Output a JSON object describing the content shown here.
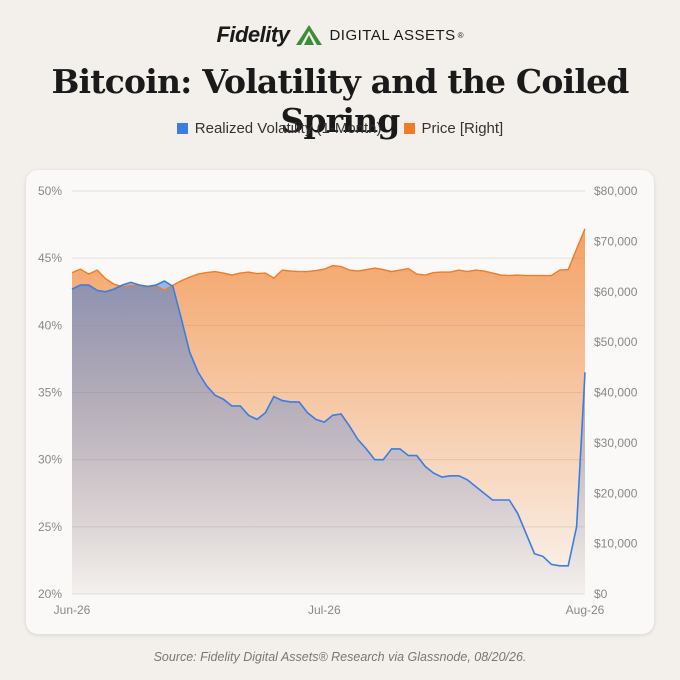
{
  "brand": {
    "name": "Fidelity",
    "subtitle": "DIGITAL ASSETS",
    "registered": "®"
  },
  "title": "Bitcoin: Volatility and the Coiled Spring",
  "source": "Source: Fidelity Digital Assets® Research via Glassnode, 08/20/26.",
  "colors": {
    "volatility": "#3b7de0",
    "price": "#f07c25",
    "brand_green": "#3d8c3a"
  },
  "chart_data": {
    "type": "area",
    "title": "",
    "series": [
      {
        "name": "Realized Volatility (1-Month)",
        "axis": "left",
        "values": [
          42.7,
          43.0,
          43.0,
          42.6,
          42.5,
          42.7,
          43.0,
          43.2,
          43.0,
          42.9,
          43.0,
          43.3,
          42.9,
          40.5,
          38.0,
          36.5,
          35.5,
          34.8,
          34.5,
          34.0,
          34.0,
          33.3,
          33.0,
          33.5,
          34.7,
          34.4,
          34.3,
          34.3,
          33.5,
          33.0,
          32.8,
          33.3,
          33.4,
          32.5,
          31.5,
          30.8,
          30.0,
          30.0,
          30.8,
          30.8,
          30.3,
          30.3,
          29.5,
          29.0,
          28.7,
          28.8,
          28.8,
          28.5,
          28.0,
          27.5,
          27.0,
          27.0,
          27.0,
          26.0,
          24.5,
          23.0,
          22.8,
          22.2,
          22.1,
          22.1,
          25.0,
          36.5
        ]
      },
      {
        "name": "Price [Right]",
        "axis": "right",
        "values": [
          63800,
          64500,
          63500,
          64300,
          62600,
          61500,
          61000,
          61200,
          61300,
          60900,
          61200,
          60300,
          61300,
          62200,
          62900,
          63500,
          63800,
          64000,
          63700,
          63300,
          63700,
          63900,
          63600,
          63700,
          62700,
          64300,
          64100,
          64000,
          64000,
          64200,
          64500,
          65200,
          65000,
          64300,
          64100,
          64400,
          64700,
          64400,
          64000,
          64300,
          64600,
          63500,
          63300,
          63800,
          63900,
          63900,
          64300,
          64000,
          64300,
          64100,
          63700,
          63300,
          63200,
          63300,
          63200,
          63200,
          63200,
          63200,
          64300,
          64400,
          68500,
          72500
        ]
      }
    ],
    "y_left": {
      "min": 20,
      "max": 50,
      "ticks": [
        "20%",
        "25%",
        "30%",
        "35%",
        "40%",
        "45%",
        "50%"
      ]
    },
    "y_right": {
      "min": 0,
      "max": 80000,
      "ticks": [
        "$0",
        "$10,000",
        "$20,000",
        "$30,000",
        "$40,000",
        "$50,000",
        "$60,000",
        "$70,000",
        "$80,000"
      ]
    },
    "x_ticks": [
      {
        "label": "Jun-26",
        "index": 0
      },
      {
        "label": "Jul-26",
        "index": 30
      },
      {
        "label": "Aug-26",
        "index": 61
      }
    ],
    "grid": true,
    "legend_position": "top-center"
  }
}
